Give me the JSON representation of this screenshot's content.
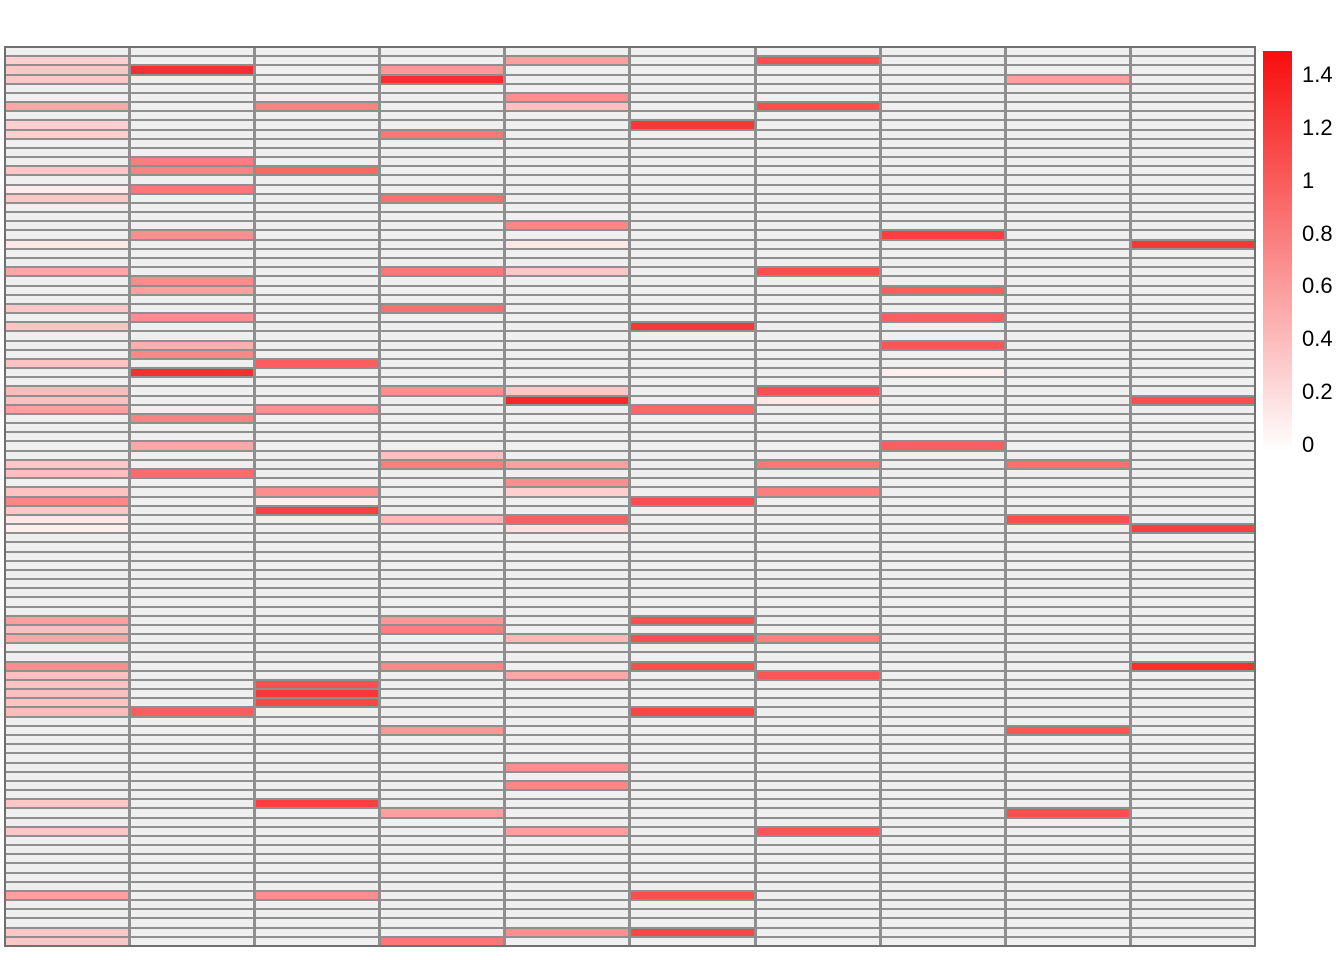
{
  "figure": {
    "kind": "heatmap-plot-screenshot",
    "background": "#FFFFFF"
  },
  "chart_data": {
    "type": "heatmap",
    "title": "",
    "xlabel": "",
    "ylabel": "",
    "rows": 98,
    "cols": 10,
    "grid_on": true,
    "grid_line_color": "#8F8F8F",
    "outer_border_color": "#707070",
    "zero_color": "#EFEFEF",
    "color_scale": {
      "low": "#FFFFFF",
      "high": "#F70D0D",
      "min": 0,
      "max": 1.51
    },
    "colorbar": {
      "position": "right",
      "tick_labels": [
        "1.4",
        "1.2",
        "1",
        "0.8",
        "0.6",
        "0.4",
        "0.2",
        "0"
      ]
    },
    "cells_rcv": [
      [
        2,
        1,
        0.3
      ],
      [
        3,
        1,
        0.35
      ],
      [
        4,
        1,
        0.35
      ],
      [
        7,
        1,
        0.55
      ],
      [
        9,
        1,
        0.3
      ],
      [
        10,
        1,
        0.3
      ],
      [
        14,
        1,
        0.35
      ],
      [
        16,
        1,
        0.12
      ],
      [
        17,
        1,
        0.35
      ],
      [
        22,
        1,
        0.15
      ],
      [
        25,
        1,
        0.55
      ],
      [
        29,
        1,
        0.35
      ],
      [
        31,
        1,
        0.38
      ],
      [
        35,
        1,
        0.38
      ],
      [
        38,
        1,
        0.42
      ],
      [
        39,
        1,
        0.4
      ],
      [
        40,
        1,
        0.6
      ],
      [
        46,
        1,
        0.35
      ],
      [
        47,
        1,
        0.4
      ],
      [
        49,
        1,
        0.38
      ],
      [
        50,
        1,
        0.75
      ],
      [
        51,
        1,
        0.35
      ],
      [
        52,
        1,
        0.15
      ],
      [
        53,
        1,
        0.1
      ],
      [
        63,
        1,
        0.6
      ],
      [
        64,
        1,
        0.4
      ],
      [
        65,
        1,
        0.55
      ],
      [
        68,
        1,
        0.7
      ],
      [
        69,
        1,
        0.4
      ],
      [
        70,
        1,
        0.38
      ],
      [
        71,
        1,
        0.4
      ],
      [
        72,
        1,
        0.38
      ],
      [
        73,
        1,
        0.42
      ],
      [
        83,
        1,
        0.35
      ],
      [
        86,
        1,
        0.35
      ],
      [
        93,
        1,
        0.6
      ],
      [
        97,
        1,
        0.35
      ],
      [
        98,
        1,
        0.35
      ],
      [
        3,
        2,
        1.3
      ],
      [
        13,
        2,
        0.8
      ],
      [
        14,
        2,
        0.78
      ],
      [
        16,
        2,
        0.85
      ],
      [
        21,
        2,
        0.7
      ],
      [
        26,
        2,
        0.72
      ],
      [
        27,
        2,
        0.6
      ],
      [
        30,
        2,
        0.7
      ],
      [
        33,
        2,
        0.5
      ],
      [
        34,
        2,
        0.75
      ],
      [
        36,
        2,
        1.3
      ],
      [
        41,
        2,
        0.78
      ],
      [
        44,
        2,
        0.55
      ],
      [
        47,
        2,
        0.92
      ],
      [
        73,
        2,
        1.0
      ],
      [
        7,
        3,
        0.78
      ],
      [
        14,
        3,
        0.95
      ],
      [
        35,
        3,
        1.0
      ],
      [
        40,
        3,
        0.7
      ],
      [
        49,
        3,
        0.7
      ],
      [
        50,
        3,
        0.1
      ],
      [
        51,
        3,
        1.2
      ],
      [
        70,
        3,
        1.1
      ],
      [
        71,
        3,
        1.25
      ],
      [
        72,
        3,
        1.15
      ],
      [
        83,
        3,
        1.2
      ],
      [
        93,
        3,
        0.7
      ],
      [
        3,
        4,
        0.65
      ],
      [
        4,
        4,
        1.3
      ],
      [
        10,
        4,
        0.85
      ],
      [
        17,
        4,
        0.9
      ],
      [
        25,
        4,
        0.85
      ],
      [
        29,
        4,
        0.9
      ],
      [
        38,
        4,
        0.7
      ],
      [
        45,
        4,
        0.4
      ],
      [
        46,
        4,
        0.8
      ],
      [
        52,
        4,
        0.45
      ],
      [
        63,
        4,
        0.65
      ],
      [
        64,
        4,
        0.8
      ],
      [
        68,
        4,
        0.75
      ],
      [
        75,
        4,
        0.65
      ],
      [
        84,
        4,
        0.6
      ],
      [
        98,
        4,
        0.85
      ],
      [
        2,
        5,
        0.6
      ],
      [
        6,
        5,
        0.7
      ],
      [
        7,
        5,
        0.4
      ],
      [
        20,
        5,
        0.75
      ],
      [
        22,
        5,
        0.15
      ],
      [
        25,
        5,
        0.35
      ],
      [
        38,
        5,
        0.35
      ],
      [
        39,
        5,
        1.35
      ],
      [
        46,
        5,
        0.6
      ],
      [
        48,
        5,
        0.7
      ],
      [
        49,
        5,
        0.3
      ],
      [
        52,
        5,
        1.0
      ],
      [
        53,
        5,
        0.2
      ],
      [
        65,
        5,
        0.45
      ],
      [
        69,
        5,
        0.55
      ],
      [
        79,
        5,
        0.7
      ],
      [
        81,
        5,
        0.75
      ],
      [
        86,
        5,
        0.6
      ],
      [
        97,
        5,
        0.7
      ],
      [
        9,
        6,
        1.25
      ],
      [
        31,
        6,
        1.25
      ],
      [
        40,
        6,
        0.95
      ],
      [
        50,
        6,
        1.1
      ],
      [
        63,
        6,
        1.1
      ],
      [
        65,
        6,
        1.1
      ],
      [
        68,
        6,
        1.1
      ],
      [
        73,
        6,
        1.15
      ],
      [
        93,
        6,
        1.1
      ],
      [
        97,
        6,
        1.15
      ],
      [
        2,
        7,
        1.1
      ],
      [
        7,
        7,
        1.1
      ],
      [
        25,
        7,
        1.1
      ],
      [
        38,
        7,
        1.1
      ],
      [
        39,
        7,
        0.15
      ],
      [
        46,
        7,
        0.85
      ],
      [
        49,
        7,
        0.8
      ],
      [
        65,
        7,
        0.8
      ],
      [
        69,
        7,
        1.05
      ],
      [
        86,
        7,
        1.05
      ],
      [
        21,
        8,
        1.2
      ],
      [
        27,
        8,
        1.0
      ],
      [
        30,
        8,
        1.0
      ],
      [
        33,
        8,
        1.05
      ],
      [
        36,
        8,
        0.1
      ],
      [
        44,
        8,
        1.0
      ],
      [
        4,
        9,
        0.6
      ],
      [
        46,
        9,
        0.9
      ],
      [
        52,
        9,
        1.1
      ],
      [
        75,
        9,
        1.05
      ],
      [
        84,
        9,
        1.1
      ],
      [
        22,
        10,
        1.25
      ],
      [
        39,
        10,
        1.1
      ],
      [
        53,
        10,
        1.2
      ],
      [
        68,
        10,
        1.3
      ]
    ]
  }
}
